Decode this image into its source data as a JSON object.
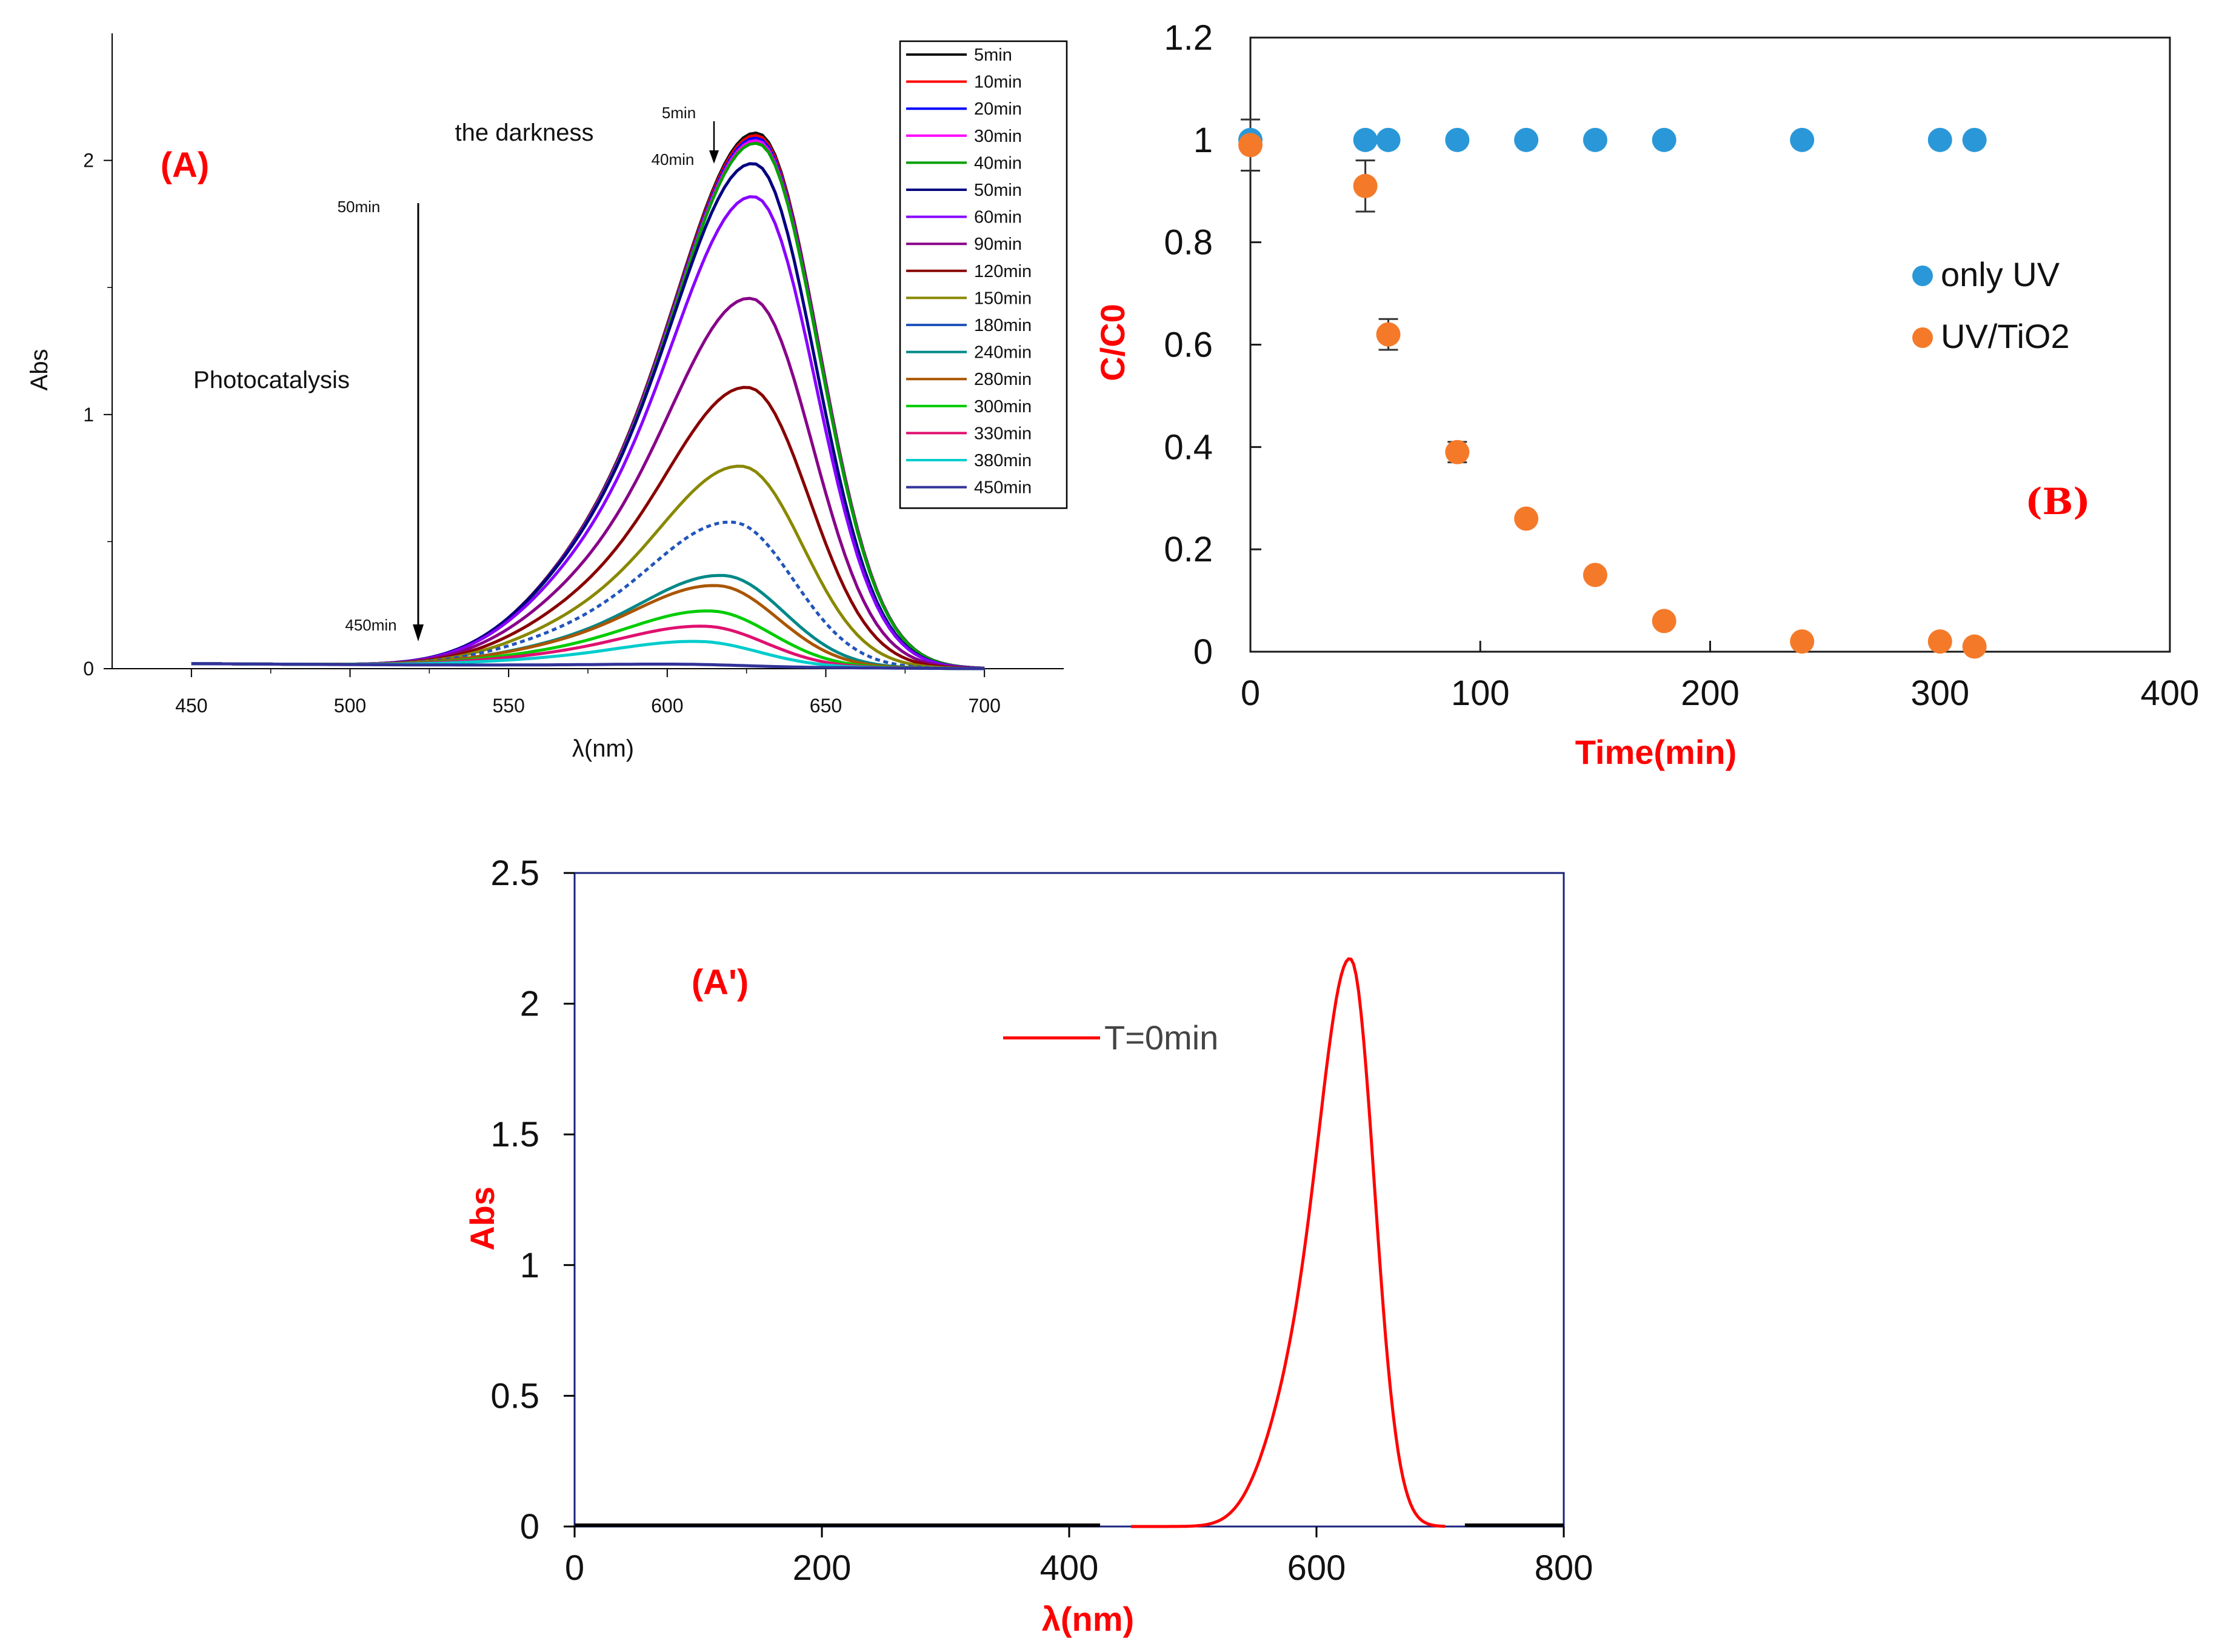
{
  "colors": {
    "series": [
      "#111111",
      "#ff0000",
      "#0000ff",
      "#ff00ff",
      "#00a000",
      "#000080",
      "#8800ff",
      "#880088",
      "#880000",
      "#888800",
      "#2255bb",
      "#008888",
      "#aa5500",
      "#00cc00",
      "#e01070",
      "#00cccc",
      "#333399"
    ],
    "onlyUV": "#2a98d8",
    "uvTiO2": "#f47a2a",
    "red": "#ff0000",
    "axisB": "#1a1a1a",
    "frameA2": "#1a237e"
  },
  "chart_data": [
    {
      "id": "A",
      "type": "line",
      "panel_label": "(A)",
      "xlabel": "λ(nm)",
      "ylabel": "Abs",
      "xlim": [
        425,
        725
      ],
      "ylim": [
        0,
        2.5
      ],
      "x_ticks": [
        "450",
        "500",
        "550",
        "600",
        "650",
        "700"
      ],
      "y_ticks": [
        "0",
        "1",
        "2"
      ],
      "annotations": {
        "darkness": "the darkness",
        "dark_start": "5min",
        "dark_end": "40min",
        "photo": "Photocatalysis",
        "photo_start": "50min",
        "photo_end": "450min"
      },
      "series": [
        {
          "name": "5min",
          "peak": 2.1,
          "center": 629
        },
        {
          "name": "10min",
          "peak": 2.09,
          "center": 629
        },
        {
          "name": "20min",
          "peak": 2.08,
          "center": 629
        },
        {
          "name": "30min",
          "peak": 2.07,
          "center": 629
        },
        {
          "name": "40min",
          "peak": 2.06,
          "center": 629
        },
        {
          "name": "50min",
          "peak": 1.98,
          "center": 628
        },
        {
          "name": "60min",
          "peak": 1.85,
          "center": 628
        },
        {
          "name": "90min",
          "peak": 1.45,
          "center": 627
        },
        {
          "name": "120min",
          "peak": 1.1,
          "center": 626
        },
        {
          "name": "150min",
          "peak": 0.79,
          "center": 624
        },
        {
          "name": "180min",
          "peak": 0.57,
          "center": 621
        },
        {
          "name": "240min",
          "peak": 0.36,
          "center": 618
        },
        {
          "name": "280min",
          "peak": 0.32,
          "center": 616
        },
        {
          "name": "300min",
          "peak": 0.22,
          "center": 614
        },
        {
          "name": "330min",
          "peak": 0.16,
          "center": 612
        },
        {
          "name": "380min",
          "peak": 0.1,
          "center": 610
        },
        {
          "name": "450min",
          "peak": 0.01,
          "center": 605
        }
      ]
    },
    {
      "id": "B",
      "type": "scatter",
      "panel_label": "(B)",
      "xlabel": "Time(min)",
      "ylabel": "C/C0",
      "xlim": [
        0,
        400
      ],
      "ylim": [
        0,
        1.2
      ],
      "x_ticks": [
        "0",
        "100",
        "200",
        "300",
        "400"
      ],
      "y_ticks": [
        "0",
        "0.2",
        "0.4",
        "0.6",
        "0.8",
        "1",
        "1.2"
      ],
      "series": [
        {
          "name": "only UV",
          "points": [
            [
              0,
              1
            ],
            [
              50,
              1
            ],
            [
              60,
              1
            ],
            [
              90,
              1
            ],
            [
              120,
              1
            ],
            [
              150,
              1
            ],
            [
              180,
              1
            ],
            [
              240,
              1
            ],
            [
              300,
              1
            ],
            [
              315,
              1
            ]
          ]
        },
        {
          "name": "UV/TiO2",
          "points": [
            [
              0,
              0.99
            ],
            [
              50,
              0.91
            ],
            [
              60,
              0.62
            ],
            [
              90,
              0.39
            ],
            [
              120,
              0.26
            ],
            [
              150,
              0.15
            ],
            [
              180,
              0.06
            ],
            [
              240,
              0.02
            ],
            [
              300,
              0.02
            ],
            [
              315,
              0.01
            ]
          ],
          "errors": [
            0.05,
            0.05,
            0.03,
            0.02,
            0.0,
            0.0,
            0.0,
            0.0,
            0.0,
            0.0
          ]
        }
      ]
    },
    {
      "id": "A2",
      "type": "line",
      "panel_label": "(A')",
      "xlabel": "λ(nm)",
      "ylabel": "Abs",
      "xlim": [
        0,
        800
      ],
      "ylim": [
        0,
        2.5
      ],
      "x_ticks": [
        "0",
        "200",
        "400",
        "600",
        "800"
      ],
      "y_ticks": [
        "0",
        "0.5",
        "1",
        "1.5",
        "2",
        "2.5"
      ],
      "series": [
        {
          "name": "T=0min",
          "peak": 2.17,
          "center": 628
        }
      ]
    }
  ]
}
